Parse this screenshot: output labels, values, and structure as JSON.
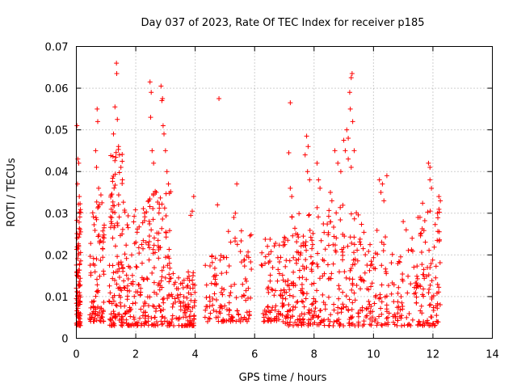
{
  "chart_data": {
    "type": "scatter",
    "title": "Day 037 of 2023, Rate Of TEC Index for receiver p185",
    "xlabel": "GPS time / hours",
    "ylabel": "ROTI / TECUs",
    "xlim": [
      0,
      14
    ],
    "ylim": [
      0,
      0.07
    ],
    "xticks": [
      0,
      2,
      4,
      6,
      8,
      10,
      12,
      14
    ],
    "xtick_labels": [
      "0",
      "2",
      "4",
      "6",
      "8",
      "10",
      "12",
      "14"
    ],
    "yticks": [
      0,
      0.01,
      0.02,
      0.03,
      0.04,
      0.05,
      0.06,
      0.07
    ],
    "ytick_labels": [
      "0",
      "0.01",
      "0.02",
      "0.03",
      "0.04",
      "0.05",
      "0.06",
      "0.07"
    ],
    "grid": true,
    "marker": "+",
    "color": "#ff0000",
    "series": [
      {
        "name": "ROTI",
        "clusters": [
          {
            "x0": 0.0,
            "x1": 0.15,
            "ymin": 0.003,
            "ymax": 0.033,
            "n": 90
          },
          {
            "x0": 0.45,
            "x1": 0.95,
            "ymin": 0.004,
            "ymax": 0.035,
            "n": 90
          },
          {
            "x0": 1.1,
            "x1": 1.6,
            "ymin": 0.003,
            "ymax": 0.047,
            "n": 110
          },
          {
            "x0": 1.6,
            "x1": 2.4,
            "ymin": 0.003,
            "ymax": 0.032,
            "n": 110
          },
          {
            "x0": 2.4,
            "x1": 3.2,
            "ymin": 0.003,
            "ymax": 0.036,
            "n": 120
          },
          {
            "x0": 3.2,
            "x1": 4.0,
            "ymin": 0.003,
            "ymax": 0.016,
            "n": 100
          },
          {
            "x0": 4.3,
            "x1": 5.0,
            "ymin": 0.004,
            "ymax": 0.02,
            "n": 60
          },
          {
            "x0": 5.0,
            "x1": 5.9,
            "ymin": 0.004,
            "ymax": 0.026,
            "n": 70
          },
          {
            "x0": 6.2,
            "x1": 7.0,
            "ymin": 0.004,
            "ymax": 0.024,
            "n": 80
          },
          {
            "x0": 7.0,
            "x1": 8.0,
            "ymin": 0.003,
            "ymax": 0.03,
            "n": 140
          },
          {
            "x0": 8.0,
            "x1": 9.6,
            "ymin": 0.003,
            "ymax": 0.032,
            "n": 160
          },
          {
            "x0": 9.6,
            "x1": 10.5,
            "ymin": 0.003,
            "ymax": 0.026,
            "n": 80
          },
          {
            "x0": 10.5,
            "x1": 11.5,
            "ymin": 0.003,
            "ymax": 0.022,
            "n": 70
          },
          {
            "x0": 11.5,
            "x1": 12.25,
            "ymin": 0.003,
            "ymax": 0.033,
            "n": 90
          }
        ],
        "outliers": [
          [
            0.02,
            0.051
          ],
          [
            0.05,
            0.043
          ],
          [
            0.08,
            0.042
          ],
          [
            0.04,
            0.037
          ],
          [
            0.1,
            0.034
          ],
          [
            0.7,
            0.055
          ],
          [
            0.72,
            0.052
          ],
          [
            0.65,
            0.045
          ],
          [
            0.68,
            0.041
          ],
          [
            0.75,
            0.036
          ],
          [
            1.35,
            0.066
          ],
          [
            1.36,
            0.0635
          ],
          [
            1.3,
            0.0555
          ],
          [
            1.38,
            0.0525
          ],
          [
            1.25,
            0.049
          ],
          [
            1.42,
            0.046
          ],
          [
            1.45,
            0.044
          ],
          [
            1.5,
            0.041
          ],
          [
            1.55,
            0.038
          ],
          [
            2.48,
            0.0615
          ],
          [
            2.52,
            0.059
          ],
          [
            2.5,
            0.053
          ],
          [
            2.85,
            0.0605
          ],
          [
            2.9,
            0.0575
          ],
          [
            2.88,
            0.057
          ],
          [
            2.92,
            0.051
          ],
          [
            2.95,
            0.049
          ],
          [
            3.0,
            0.045
          ],
          [
            3.05,
            0.04
          ],
          [
            3.1,
            0.037
          ],
          [
            2.55,
            0.045
          ],
          [
            2.6,
            0.042
          ],
          [
            3.9,
            0.0305
          ],
          [
            3.85,
            0.0295
          ],
          [
            3.95,
            0.034
          ],
          [
            4.8,
            0.0575
          ],
          [
            4.75,
            0.032
          ],
          [
            5.4,
            0.037
          ],
          [
            5.3,
            0.029
          ],
          [
            5.35,
            0.03
          ],
          [
            7.2,
            0.0565
          ],
          [
            7.15,
            0.0445
          ],
          [
            7.2,
            0.036
          ],
          [
            7.25,
            0.034
          ],
          [
            7.75,
            0.0485
          ],
          [
            7.8,
            0.046
          ],
          [
            7.7,
            0.044
          ],
          [
            7.78,
            0.04
          ],
          [
            7.85,
            0.038
          ],
          [
            8.1,
            0.042
          ],
          [
            8.15,
            0.038
          ],
          [
            8.2,
            0.036
          ],
          [
            8.55,
            0.035
          ],
          [
            8.6,
            0.033
          ],
          [
            8.7,
            0.045
          ],
          [
            8.8,
            0.042
          ],
          [
            8.9,
            0.04
          ],
          [
            9.0,
            0.0475
          ],
          [
            9.05,
            0.045
          ],
          [
            9.1,
            0.05
          ],
          [
            9.15,
            0.048
          ],
          [
            9.2,
            0.059
          ],
          [
            9.25,
            0.0625
          ],
          [
            9.28,
            0.0635
          ],
          [
            9.22,
            0.055
          ],
          [
            9.3,
            0.052
          ],
          [
            9.35,
            0.045
          ],
          [
            9.15,
            0.043
          ],
          [
            9.25,
            0.041
          ],
          [
            10.2,
            0.038
          ],
          [
            10.3,
            0.037
          ],
          [
            10.25,
            0.035
          ],
          [
            10.45,
            0.039
          ],
          [
            10.35,
            0.033
          ],
          [
            11.0,
            0.028
          ],
          [
            11.1,
            0.026
          ],
          [
            11.3,
            0.024
          ],
          [
            11.5,
            0.029
          ],
          [
            11.85,
            0.042
          ],
          [
            11.9,
            0.041
          ],
          [
            11.9,
            0.038
          ],
          [
            11.95,
            0.036
          ],
          [
            12.2,
            0.034
          ],
          [
            12.25,
            0.033
          ],
          [
            12.15,
            0.03
          ]
        ]
      }
    ]
  }
}
